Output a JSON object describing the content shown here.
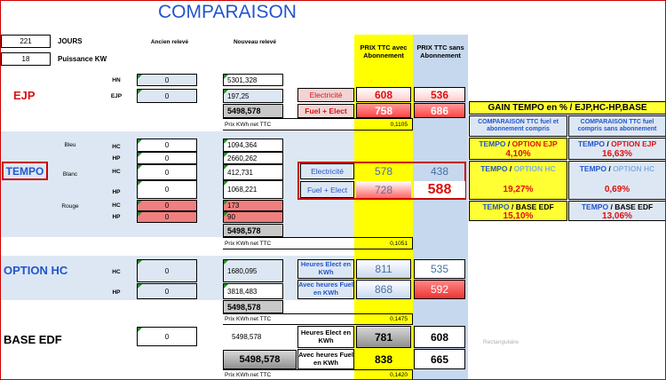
{
  "title": "COMPARAISON",
  "jours": {
    "value": "221",
    "label": "JOURS"
  },
  "puissance": {
    "value": "18",
    "label": "Puissance KW"
  },
  "headers": {
    "ancien": "Ancien relevé",
    "nouveau": "Nouveau relevé",
    "ttc_avec": "PRIX TTC avec Abonnement",
    "ttc_sans": "PRIX TTC sans Abonnement"
  },
  "ejp": {
    "label": "EJP",
    "hn": "HN",
    "ejp_lbl": "EJP",
    "hn_old": "0",
    "hn_new": "5301,328",
    "ejp_old": "0",
    "ejp_new": "197,25",
    "total": "5498,578",
    "prix_lbl": "Prix KWh net TTC",
    "prix": "0,1105",
    "elec_lbl": "Electricité",
    "elec_avec": "608",
    "elec_sans": "536",
    "fuel_lbl": "Fuel + Elect",
    "fuel_avec": "758",
    "fuel_sans": "686"
  },
  "tempo": {
    "label": "TEMPO",
    "bleu": "Bleu",
    "blanc": "Blanc",
    "rouge": "Rouge",
    "hc": "HC",
    "hp": "HP",
    "bleu_hc_old": "0",
    "bleu_hc_new": "1094,364",
    "bleu_hp_old": "0",
    "bleu_hp_new": "2660,262",
    "blanc_hc_old": "0",
    "blanc_hc_new": "412,731",
    "blanc_hp_old": "0",
    "blanc_hp_new": "1068,221",
    "rouge_hc_old": "0",
    "rouge_hc_new": "173",
    "rouge_hp_old": "0",
    "rouge_hp_new": "90",
    "total": "5498,578",
    "prix_lbl": "Prix KWh net TTC",
    "prix": "0,1051",
    "elec_lbl": "Electricité",
    "elec_avec": "578",
    "elec_sans": "438",
    "fuel_lbl": "Fuel + Elect",
    "fuel_avec": "728",
    "fuel_sans": "588"
  },
  "gain": {
    "title": "GAIN TEMPO en % / EJP,HC-HP,BASE",
    "comp_avec": "COMPARAISON TTC fuel et abonnement compris",
    "comp_sans": "COMPARAISON TTC fuel compris sans abonnement",
    "tempo": "TEMPO",
    "sep": "/",
    "opt_ejp": "OPTION EJP",
    "opt_hc": "OPTION HC",
    "base": "BASE EDF",
    "ejp_avec": "4,10%",
    "ejp_sans": "16,63%",
    "hc_avec": "19,27%",
    "hc_sans": "0,69%",
    "base_avec": "15,10%",
    "base_sans": "13,06%"
  },
  "optionhc": {
    "label": "OPTION HC",
    "hc": "HC",
    "hp": "HP",
    "hc_old": "0",
    "hc_new": "1680,095",
    "hp_old": "0",
    "hp_new": "3818,483",
    "total": "5498,578",
    "prix_lbl": "Prix KWh net TTC",
    "prix": "0,1475",
    "heures_lbl": "Heures Elect en KWh",
    "heures_avec": "811",
    "heures_sans": "535",
    "fuel_lbl": "Avec heures Fuel en KWh",
    "fuel_avec": "868",
    "fuel_sans": "592"
  },
  "base": {
    "label": "BASE EDF",
    "old": "0",
    "new": "5498,578",
    "total": "5498,578",
    "prix_lbl": "Prix KWh net TTC",
    "prix": "0,1420",
    "heures_lbl": "Heures Elect en KWh",
    "heures_avec": "781",
    "heures_sans": "608",
    "fuel_lbl": "Avec heures Fuel en KWh",
    "fuel_avec": "838",
    "fuel_sans": "665",
    "watermark": "Rectangulaire"
  },
  "colors": {
    "yellow": "#ffff00",
    "light_blue": "#c6d8ee",
    "red": "#dd1111",
    "blue": "#2255cc",
    "pink": "#f08080"
  }
}
